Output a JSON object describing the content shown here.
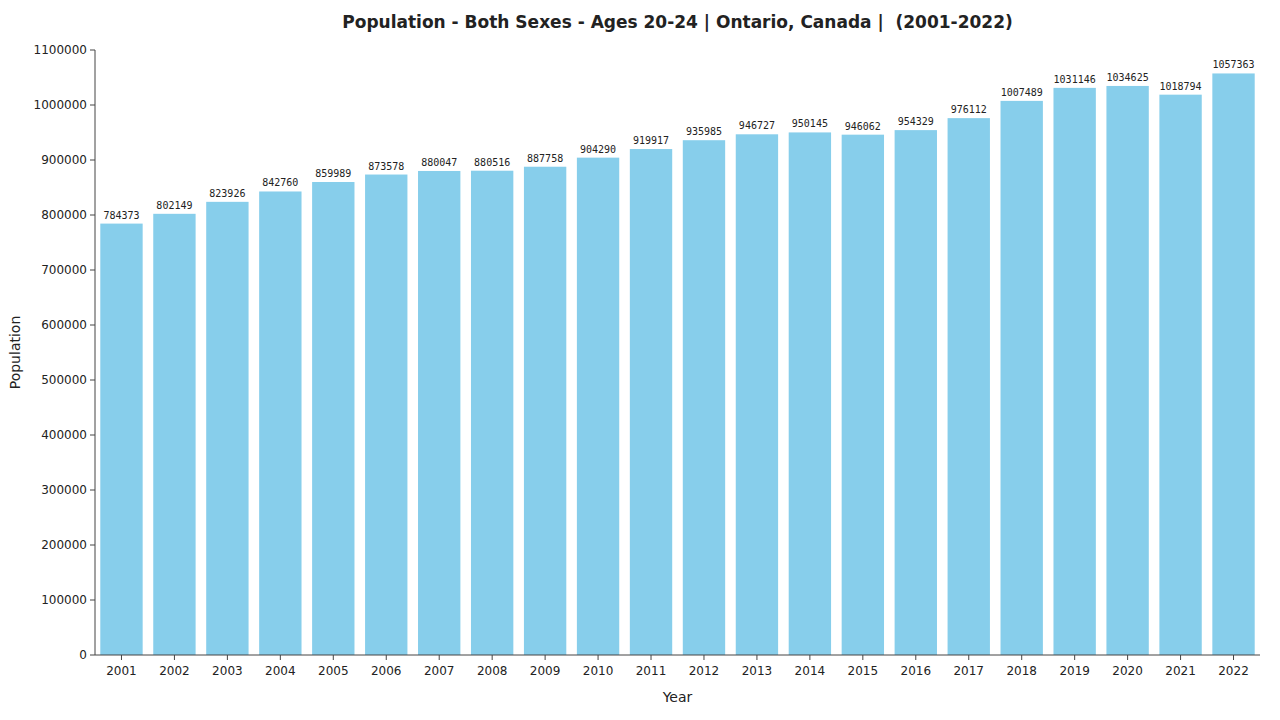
{
  "chart_data": {
    "type": "bar",
    "title": "Population - Both Sexes - Ages 20-24 | Ontario, Canada |  (2001-2022)",
    "x_label": "Year",
    "y_label": "Population",
    "categories": [
      "2001",
      "2002",
      "2003",
      "2004",
      "2005",
      "2006",
      "2007",
      "2008",
      "2009",
      "2010",
      "2011",
      "2012",
      "2013",
      "2014",
      "2015",
      "2016",
      "2017",
      "2018",
      "2019",
      "2020",
      "2021",
      "2022"
    ],
    "values": [
      784373,
      802149,
      823926,
      842760,
      859989,
      873578,
      880047,
      880516,
      887758,
      904290,
      919917,
      935985,
      946727,
      950145,
      946062,
      954329,
      976112,
      1007489,
      1031146,
      1034625,
      1018794,
      1057363
    ],
    "color": "#87CEEB",
    "ylim": [
      0,
      1100000
    ],
    "yticks": [
      0,
      100000,
      200000,
      300000,
      400000,
      500000,
      600000,
      700000,
      800000,
      900000,
      1000000,
      1100000
    ],
    "grid": false,
    "data_labels": true
  }
}
